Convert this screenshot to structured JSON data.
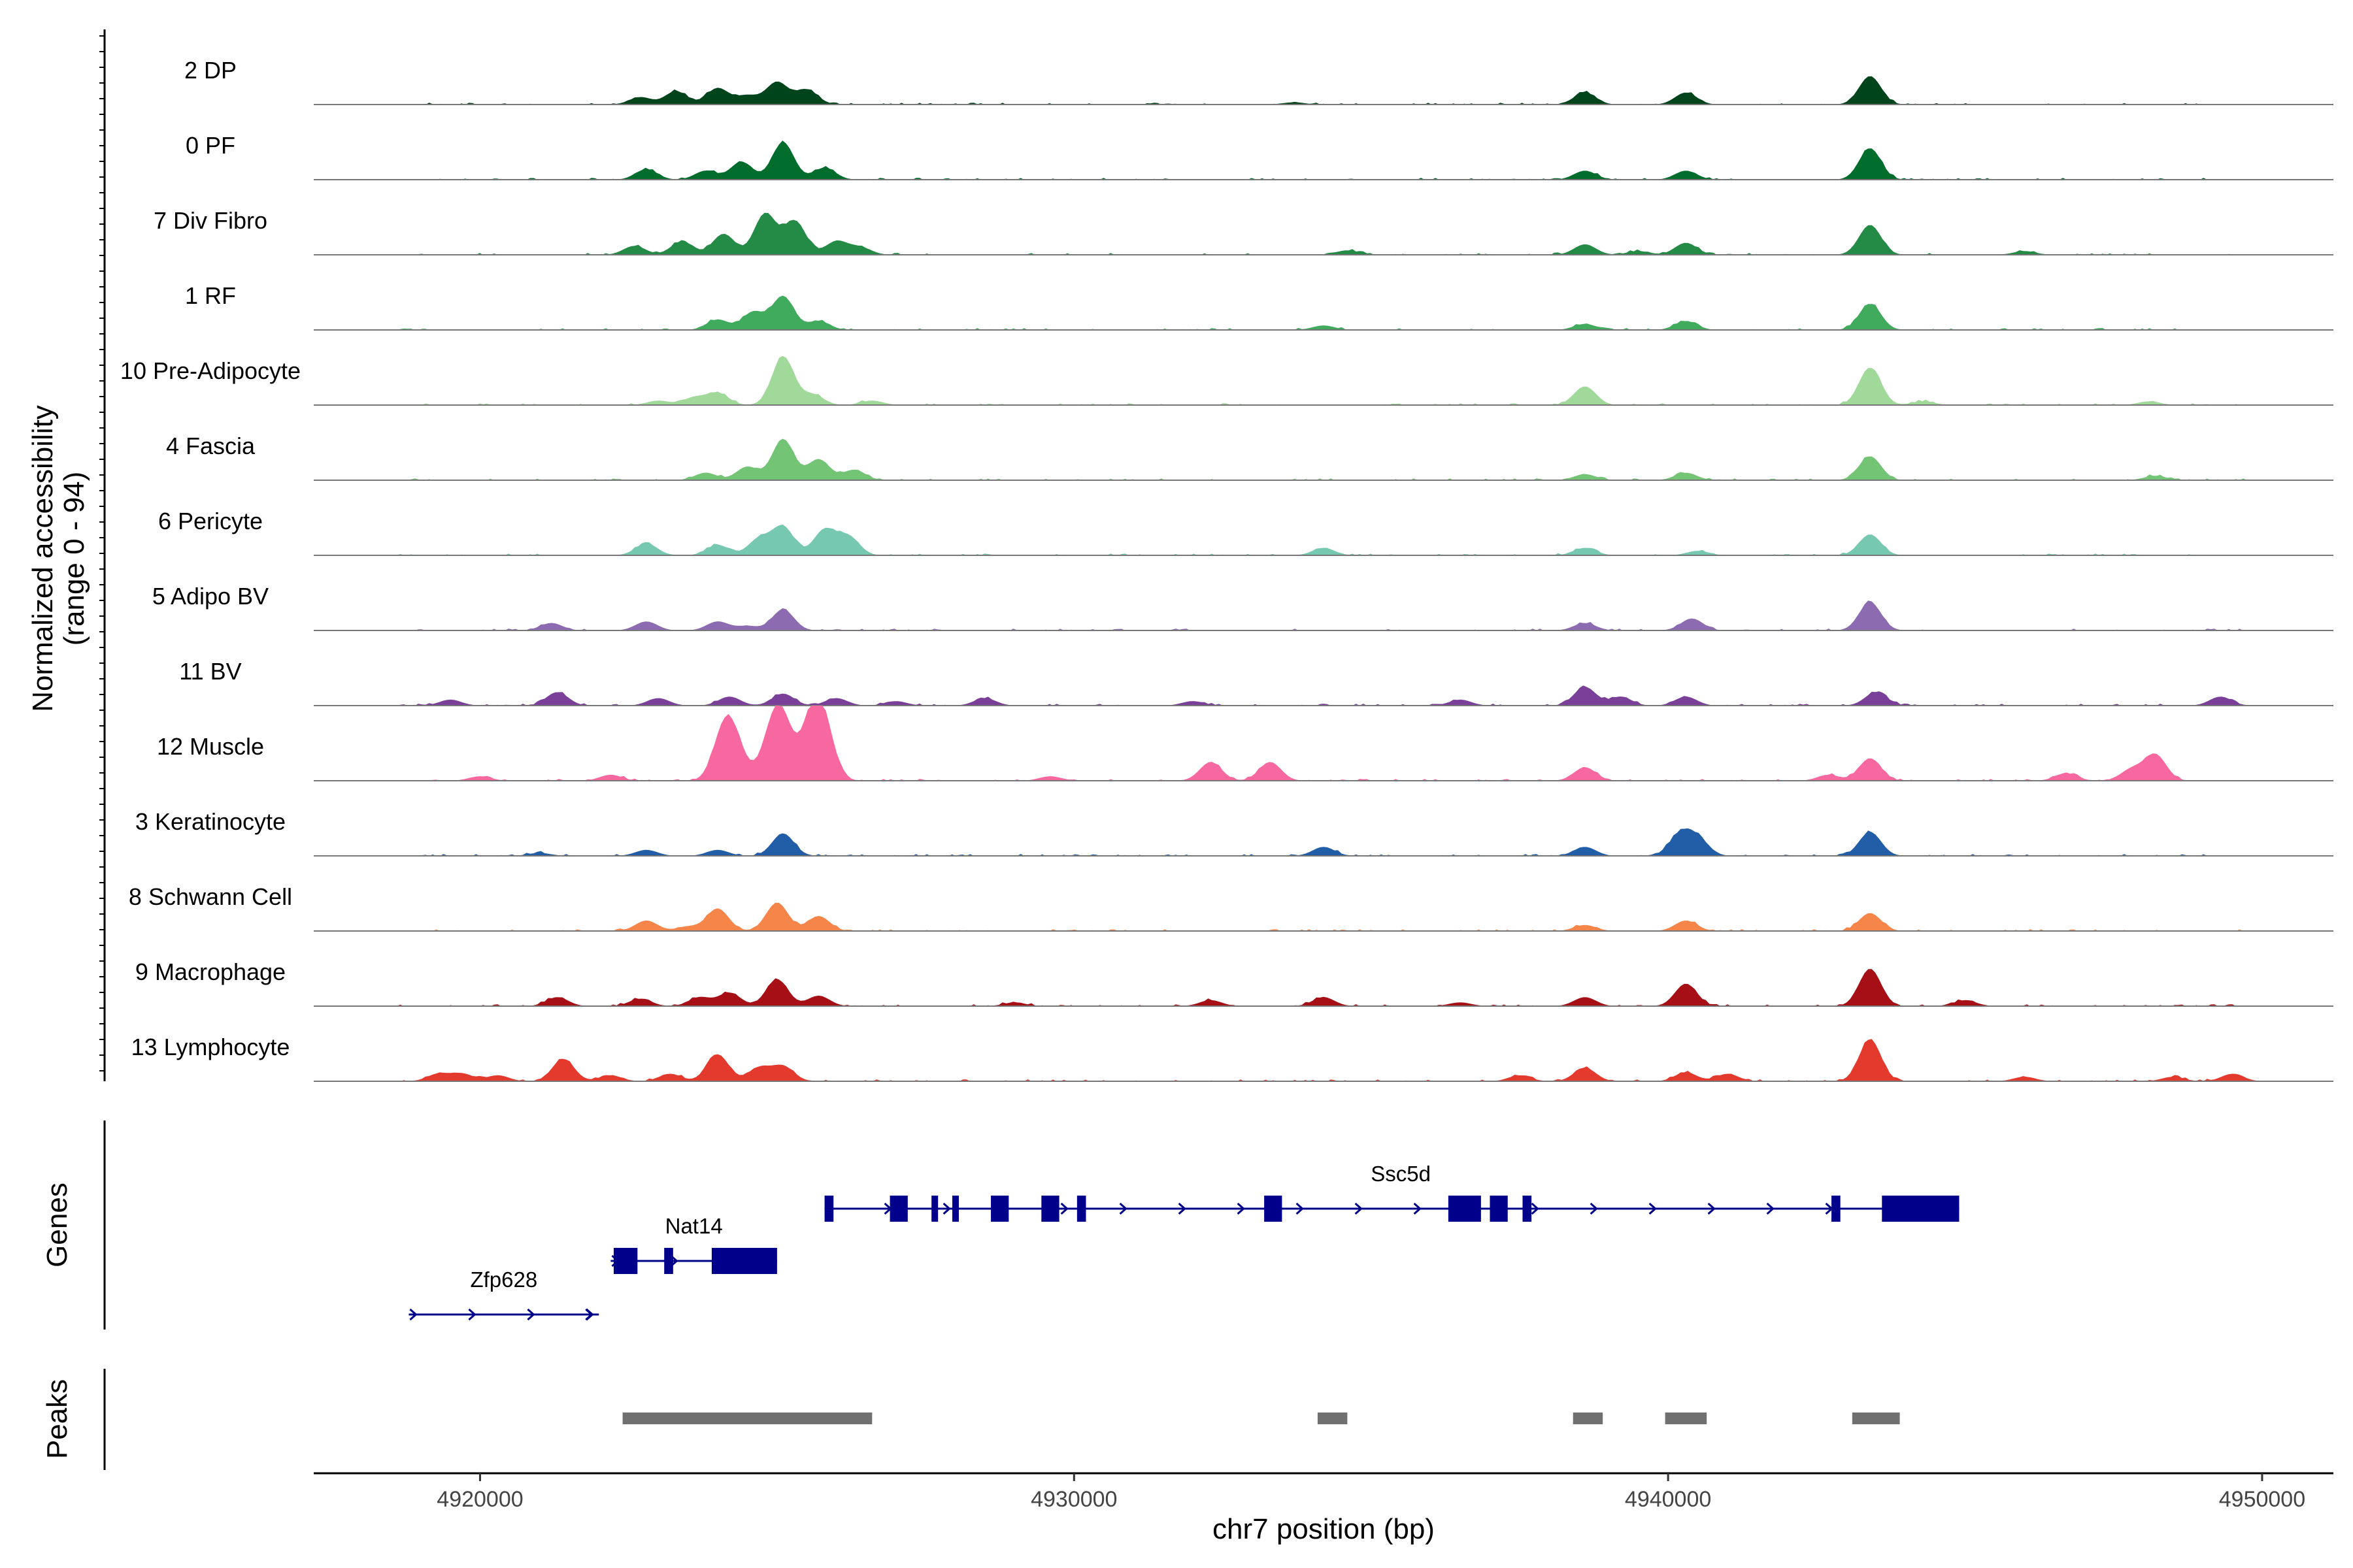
{
  "chart_data": {
    "type": "area",
    "title": "",
    "chromosome": "chr7",
    "xlabel": "chr7 position (bp)",
    "ylabel_line1": "Normalized accessibility",
    "ylabel_line2": "(range 0 - 94)",
    "y_range": [
      0,
      94
    ],
    "xlim": [
      4917200,
      4951200
    ],
    "x_ticks": [
      4920000,
      4930000,
      4940000,
      4950000
    ],
    "x_tick_labels": [
      "4920000",
      "4930000",
      "4940000",
      "4950000"
    ],
    "tracks": [
      {
        "name": "2 DP",
        "color": "#00441b",
        "peaks": [
          [
            4922700,
            0.1
          ],
          [
            4923300,
            0.18
          ],
          [
            4924000,
            0.22
          ],
          [
            4924500,
            0.12
          ],
          [
            4925000,
            0.3
          ],
          [
            4925500,
            0.2
          ],
          [
            4938600,
            0.16
          ],
          [
            4940300,
            0.16
          ],
          [
            4943400,
            0.38
          ],
          [
            4933700,
            0.03
          ]
        ]
      },
      {
        "name": "0 PF",
        "color": "#006d2c",
        "peaks": [
          [
            4922800,
            0.14
          ],
          [
            4923800,
            0.12
          ],
          [
            4924400,
            0.24
          ],
          [
            4925100,
            0.5
          ],
          [
            4925800,
            0.16
          ],
          [
            4938600,
            0.12
          ],
          [
            4940300,
            0.12
          ],
          [
            4943400,
            0.42
          ]
        ]
      },
      {
        "name": "7 Div Fibro",
        "color": "#238b45",
        "peaks": [
          [
            4922600,
            0.12
          ],
          [
            4923400,
            0.18
          ],
          [
            4924100,
            0.28
          ],
          [
            4924800,
            0.55
          ],
          [
            4925300,
            0.45
          ],
          [
            4926000,
            0.18
          ],
          [
            4926400,
            0.1
          ],
          [
            4934600,
            0.06
          ],
          [
            4938600,
            0.14
          ],
          [
            4940300,
            0.16
          ],
          [
            4943400,
            0.4
          ],
          [
            4939500,
            0.05
          ],
          [
            4946000,
            0.05
          ]
        ]
      },
      {
        "name": "1 RF",
        "color": "#41ab5d",
        "peaks": [
          [
            4924000,
            0.14
          ],
          [
            4924600,
            0.24
          ],
          [
            4925100,
            0.45
          ],
          [
            4925700,
            0.12
          ],
          [
            4934200,
            0.06
          ],
          [
            4938600,
            0.08
          ],
          [
            4940300,
            0.12
          ],
          [
            4943400,
            0.35
          ]
        ]
      },
      {
        "name": "10 Pre-Adipocyte",
        "color": "#a1d99b",
        "peaks": [
          [
            4923600,
            0.1
          ],
          [
            4924000,
            0.16
          ],
          [
            4925100,
            0.65
          ],
          [
            4925600,
            0.14
          ],
          [
            4938600,
            0.25
          ],
          [
            4943400,
            0.5
          ],
          [
            4944300,
            0.05
          ],
          [
            4948100,
            0.05
          ],
          [
            4923000,
            0.06
          ],
          [
            4926600,
            0.06
          ]
        ]
      },
      {
        "name": "4 Fascia",
        "color": "#74c476",
        "peaks": [
          [
            4923800,
            0.1
          ],
          [
            4924500,
            0.18
          ],
          [
            4925100,
            0.55
          ],
          [
            4925700,
            0.28
          ],
          [
            4926300,
            0.14
          ],
          [
            4938600,
            0.08
          ],
          [
            4940300,
            0.1
          ],
          [
            4943400,
            0.32
          ],
          [
            4948200,
            0.06
          ]
        ]
      },
      {
        "name": "6 Pericyte",
        "color": "#76c8b1",
        "peaks": [
          [
            4922800,
            0.16
          ],
          [
            4924000,
            0.14
          ],
          [
            4924700,
            0.22
          ],
          [
            4925100,
            0.38
          ],
          [
            4925800,
            0.34
          ],
          [
            4926200,
            0.25
          ],
          [
            4934200,
            0.1
          ],
          [
            4938600,
            0.1
          ],
          [
            4943400,
            0.28
          ],
          [
            4940500,
            0.06
          ]
        ]
      },
      {
        "name": "5 Adipo BV",
        "color": "#8c6bb1",
        "peaks": [
          [
            4921200,
            0.1
          ],
          [
            4922800,
            0.12
          ],
          [
            4924000,
            0.12
          ],
          [
            4925100,
            0.28
          ],
          [
            4938600,
            0.1
          ],
          [
            4940400,
            0.16
          ],
          [
            4943400,
            0.38
          ],
          [
            4924500,
            0.06
          ]
        ]
      },
      {
        "name": "11 BV",
        "color": "#7a3f99",
        "peaks": [
          [
            4921300,
            0.18
          ],
          [
            4919500,
            0.08
          ],
          [
            4923000,
            0.1
          ],
          [
            4924200,
            0.12
          ],
          [
            4925100,
            0.16
          ],
          [
            4926000,
            0.1
          ],
          [
            4928500,
            0.1
          ],
          [
            4938600,
            0.25
          ],
          [
            4939200,
            0.12
          ],
          [
            4940300,
            0.12
          ],
          [
            4943500,
            0.18
          ],
          [
            4949300,
            0.12
          ],
          [
            4936500,
            0.08
          ],
          [
            4932000,
            0.06
          ],
          [
            4927000,
            0.06
          ]
        ]
      },
      {
        "name": "12 Muscle",
        "color": "#f768a1",
        "peaks": [
          [
            4924100,
            0.6
          ],
          [
            4924300,
            0.4
          ],
          [
            4924900,
            0.5
          ],
          [
            4925100,
            0.68
          ],
          [
            4925600,
            0.8
          ],
          [
            4925800,
            0.55
          ],
          [
            4922200,
            0.08
          ],
          [
            4932300,
            0.25
          ],
          [
            4933300,
            0.25
          ],
          [
            4938600,
            0.18
          ],
          [
            4943400,
            0.3
          ],
          [
            4942700,
            0.08
          ],
          [
            4948200,
            0.35
          ],
          [
            4946700,
            0.1
          ],
          [
            4947800,
            0.15
          ],
          [
            4920000,
            0.06
          ],
          [
            4929600,
            0.06
          ]
        ]
      },
      {
        "name": "3 Keratinocyte",
        "color": "#225ea8",
        "peaks": [
          [
            4922800,
            0.08
          ],
          [
            4924000,
            0.08
          ],
          [
            4925100,
            0.3
          ],
          [
            4934200,
            0.12
          ],
          [
            4938600,
            0.12
          ],
          [
            4940200,
            0.28
          ],
          [
            4940500,
            0.22
          ],
          [
            4943400,
            0.32
          ],
          [
            4921000,
            0.04
          ]
        ]
      },
      {
        "name": "8 Schwann Cell",
        "color": "#f58549",
        "peaks": [
          [
            4922800,
            0.14
          ],
          [
            4924000,
            0.3
          ],
          [
            4925000,
            0.38
          ],
          [
            4925700,
            0.2
          ],
          [
            4938600,
            0.08
          ],
          [
            4940300,
            0.14
          ],
          [
            4943400,
            0.24
          ],
          [
            4923500,
            0.06
          ]
        ]
      },
      {
        "name": "9 Macrophage",
        "color": "#a50f15",
        "peaks": [
          [
            4921300,
            0.12
          ],
          [
            4922700,
            0.1
          ],
          [
            4923700,
            0.12
          ],
          [
            4924200,
            0.18
          ],
          [
            4925000,
            0.36
          ],
          [
            4925700,
            0.14
          ],
          [
            4932300,
            0.08
          ],
          [
            4934200,
            0.12
          ],
          [
            4938600,
            0.12
          ],
          [
            4940300,
            0.3
          ],
          [
            4943400,
            0.5
          ],
          [
            4945000,
            0.08
          ],
          [
            4929000,
            0.05
          ],
          [
            4936500,
            0.05
          ]
        ]
      },
      {
        "name": "13 Lymphocyte",
        "color": "#e4392d",
        "peaks": [
          [
            4919300,
            0.1
          ],
          [
            4919700,
            0.1
          ],
          [
            4920300,
            0.08
          ],
          [
            4921400,
            0.3
          ],
          [
            4922200,
            0.08
          ],
          [
            4923200,
            0.1
          ],
          [
            4924000,
            0.36
          ],
          [
            4924700,
            0.18
          ],
          [
            4925100,
            0.2
          ],
          [
            4937500,
            0.08
          ],
          [
            4938600,
            0.18
          ],
          [
            4940300,
            0.12
          ],
          [
            4941000,
            0.1
          ],
          [
            4943400,
            0.56
          ],
          [
            4946000,
            0.06
          ],
          [
            4948500,
            0.06
          ],
          [
            4949500,
            0.1
          ]
        ]
      }
    ],
    "genes_label": "Genes",
    "genes": [
      {
        "name": "Zfp628",
        "row": 2,
        "start": 4918800,
        "end": 4922000,
        "exons": [],
        "label_pos": 4920400
      },
      {
        "name": "Nat14",
        "row": 1,
        "start": 4922200,
        "end": 4925000,
        "exons": [
          [
            4922250,
            4922650
          ],
          [
            4923100,
            4923250
          ],
          [
            4923900,
            4925000
          ]
        ],
        "label_pos": 4923600
      },
      {
        "name": "Ssc5d",
        "row": 0,
        "start": 4925800,
        "end": 4944900,
        "exons": [
          [
            4925800,
            4925950
          ],
          [
            4926900,
            4927200
          ],
          [
            4927600,
            4927700
          ],
          [
            4927950,
            4928050
          ],
          [
            4928600,
            4928900
          ],
          [
            4929450,
            4929750
          ],
          [
            4930050,
            4930200
          ],
          [
            4933200,
            4933500
          ],
          [
            4936300,
            4936850
          ],
          [
            4937000,
            4937300
          ],
          [
            4937550,
            4937700
          ],
          [
            4942750,
            4942900
          ],
          [
            4943600,
            4944900
          ]
        ],
        "label_pos": 4935500
      }
    ],
    "peaks_label": "Peaks",
    "peak_regions": [
      [
        4922400,
        4926600
      ],
      [
        4934100,
        4934600
      ],
      [
        4938400,
        4938900
      ],
      [
        4939950,
        4940650
      ],
      [
        4943100,
        4943900
      ]
    ]
  }
}
